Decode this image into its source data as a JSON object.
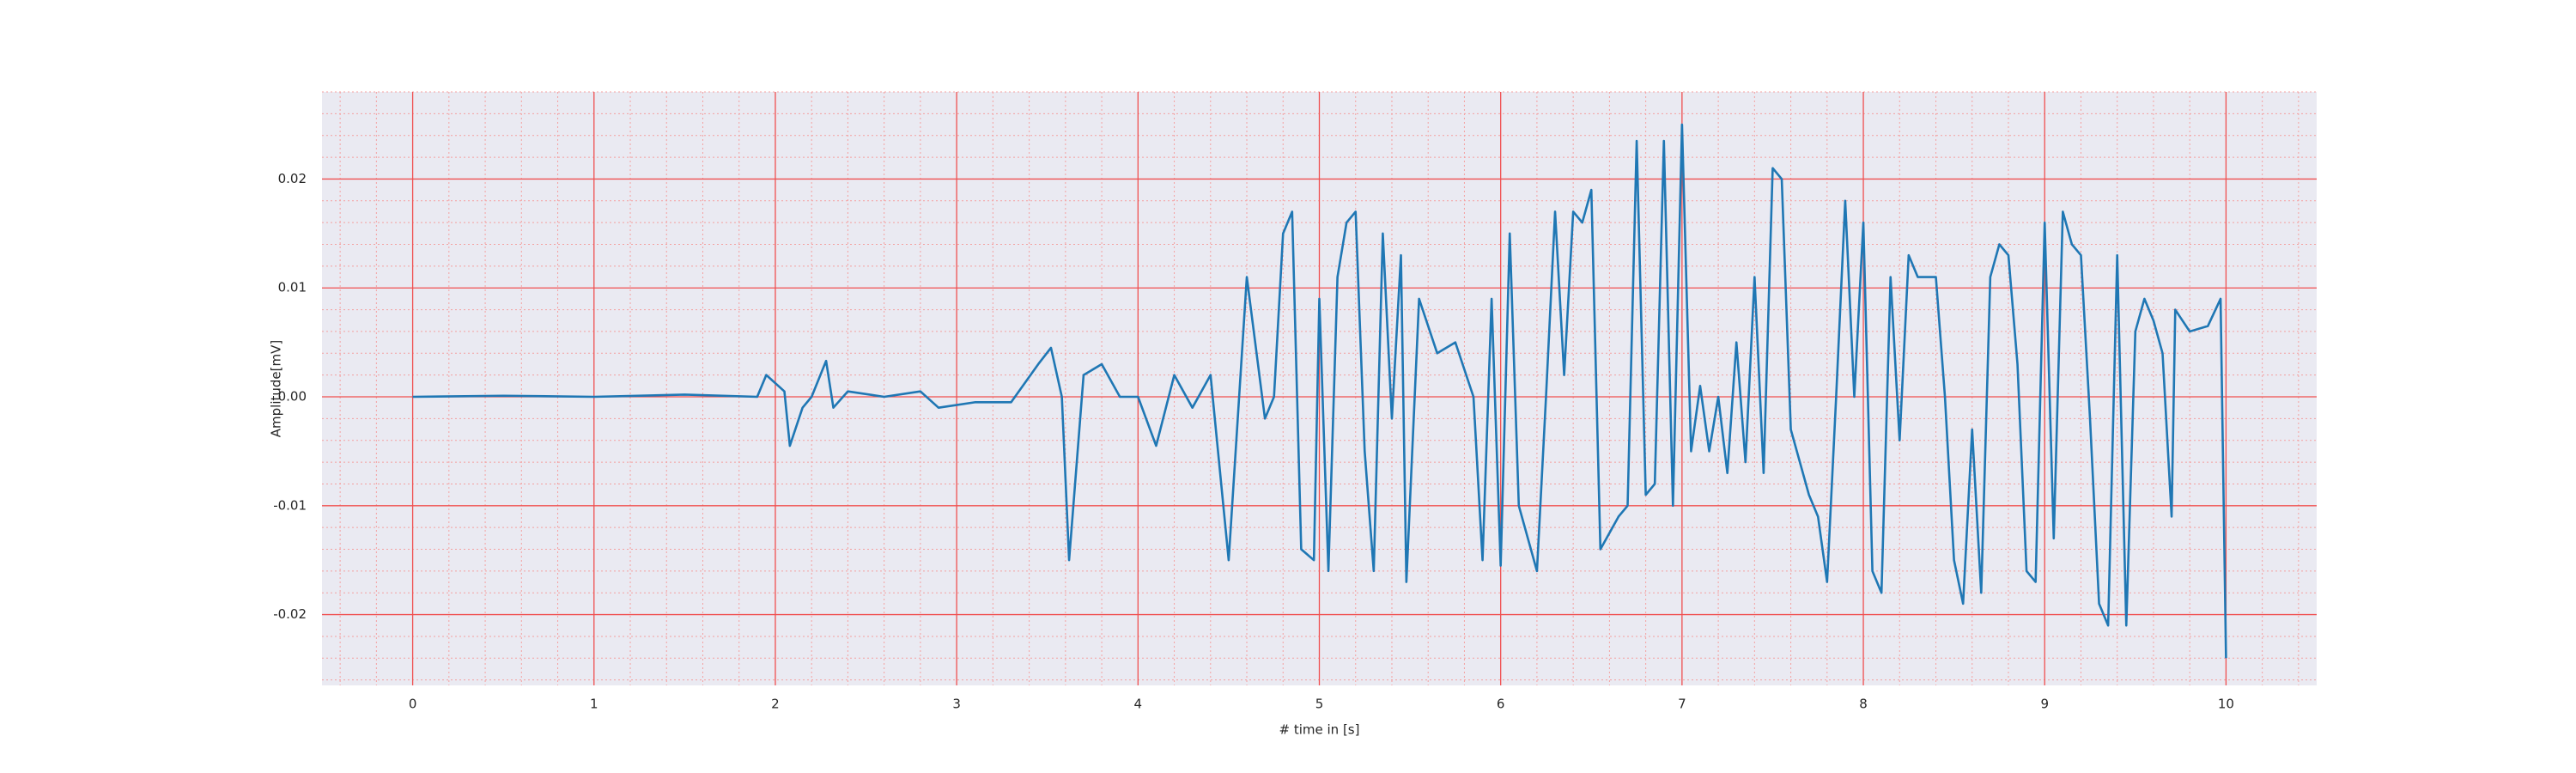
{
  "chart_data": {
    "type": "line",
    "xlabel": "# time in [s]",
    "ylabel": "Amplitude[mV]",
    "color": "#1f77b4",
    "x": [
      0,
      0.5,
      1.0,
      1.5,
      1.9,
      1.95,
      2.05,
      2.08,
      2.15,
      2.2,
      2.28,
      2.32,
      2.4,
      2.6,
      2.8,
      2.9,
      3.1,
      3.3,
      3.45,
      3.52,
      3.58,
      3.62,
      3.7,
      3.8,
      3.9,
      4.0,
      4.1,
      4.2,
      4.3,
      4.4,
      4.5,
      4.6,
      4.7,
      4.75,
      4.8,
      4.85,
      4.9,
      4.97,
      5.0,
      5.05,
      5.1,
      5.15,
      5.2,
      5.25,
      5.3,
      5.35,
      5.4,
      5.45,
      5.48,
      5.55,
      5.65,
      5.75,
      5.85,
      5.9,
      5.95,
      6.0,
      6.05,
      6.1,
      6.2,
      6.25,
      6.3,
      6.35,
      6.4,
      6.45,
      6.5,
      6.55,
      6.65,
      6.7,
      6.75,
      6.8,
      6.85,
      6.9,
      6.95,
      7.0,
      7.05,
      7.1,
      7.15,
      7.2,
      7.25,
      7.3,
      7.35,
      7.4,
      7.45,
      7.5,
      7.55,
      7.6,
      7.7,
      7.75,
      7.8,
      7.85,
      7.9,
      7.95,
      8.0,
      8.05,
      8.1,
      8.15,
      8.2,
      8.25,
      8.3,
      8.4,
      8.45,
      8.5,
      8.55,
      8.6,
      8.65,
      8.7,
      8.75,
      8.8,
      8.85,
      8.9,
      8.95,
      9.0,
      9.05,
      9.1,
      9.15,
      9.2,
      9.25,
      9.3,
      9.35,
      9.4,
      9.45,
      9.5,
      9.55,
      9.6,
      9.65,
      9.7,
      9.72,
      9.8,
      9.9,
      9.97,
      10.0
    ],
    "values": [
      0,
      0.0001,
      0,
      0.0002,
      0,
      0.002,
      0.0005,
      -0.0045,
      -0.001,
      0,
      0.0033,
      -0.001,
      0.0005,
      0,
      0.0005,
      -0.001,
      -0.0005,
      -0.0005,
      0.003,
      0.0045,
      0,
      -0.015,
      0.002,
      0.003,
      0,
      0,
      -0.0045,
      0.002,
      -0.001,
      0.002,
      -0.015,
      0.011,
      -0.002,
      0,
      0.015,
      0.017,
      -0.014,
      -0.015,
      0.009,
      -0.016,
      0.011,
      0.016,
      0.017,
      -0.005,
      -0.016,
      0.015,
      -0.002,
      0.013,
      -0.017,
      0.009,
      0.004,
      0.005,
      0,
      -0.015,
      0.009,
      -0.0155,
      0.015,
      -0.01,
      -0.016,
      0,
      0.017,
      0.002,
      0.017,
      0.016,
      0.019,
      -0.014,
      -0.011,
      -0.01,
      0.0235,
      -0.009,
      -0.008,
      0.0235,
      -0.01,
      0.025,
      -0.005,
      0.001,
      -0.005,
      0,
      -0.007,
      0.005,
      -0.006,
      0.011,
      -0.007,
      0.021,
      0.02,
      -0.003,
      -0.009,
      -0.011,
      -0.017,
      0,
      0.018,
      0,
      0.016,
      -0.016,
      -0.018,
      0.011,
      -0.004,
      0.013,
      0.011,
      0.011,
      0,
      -0.015,
      -0.019,
      -0.003,
      -0.018,
      0.011,
      0.014,
      0.013,
      0.003,
      -0.016,
      -0.017,
      0.016,
      -0.013,
      0.017,
      0.014,
      0.013,
      -0.002,
      -0.019,
      -0.021,
      0.013,
      -0.021,
      0.006,
      0.009,
      0.007,
      0.004,
      -0.011,
      0.008,
      0.006,
      0.0065,
      0.009,
      -0.024
    ],
    "xlim": [
      -0.5,
      10.5
    ],
    "xticks": [
      0,
      1,
      2,
      3,
      4,
      5,
      6,
      7,
      8,
      9,
      10
    ],
    "ylim": [
      -0.0265,
      0.028
    ],
    "yticks": [
      -0.02,
      -0.01,
      {
        "value": 0,
        "label": "0.00"
      },
      0.01,
      0.02
    ],
    "grid": true,
    "minor_grid": true
  }
}
